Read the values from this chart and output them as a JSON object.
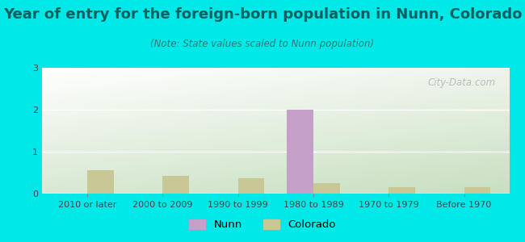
{
  "title": "Year of entry for the foreign-born population in Nunn, Colorado",
  "subtitle": "(Note: State values scaled to Nunn population)",
  "categories": [
    "2010 or later",
    "2000 to 2009",
    "1990 to 1999",
    "1980 to 1989",
    "1970 to 1979",
    "Before 1970"
  ],
  "nunn_values": [
    0,
    0,
    0,
    2.0,
    0,
    0
  ],
  "colorado_values": [
    0.55,
    0.42,
    0.37,
    0.25,
    0.15,
    0.15
  ],
  "nunn_color": "#c4a0c8",
  "colorado_color": "#c8c896",
  "background_color": "#00e8e8",
  "plot_bg_topleft": "#c8dfc0",
  "plot_bg_topright": "#e8f0e0",
  "plot_bg_bottom": "#daecd4",
  "ylim": [
    0,
    3
  ],
  "yticks": [
    0,
    1,
    2,
    3
  ],
  "bar_width": 0.35,
  "title_fontsize": 13,
  "subtitle_fontsize": 8.5,
  "tick_fontsize": 8,
  "legend_fontsize": 9.5,
  "title_color": "#006060",
  "subtitle_color": "#337777",
  "tick_color": "#444444",
  "watermark": "City-Data.com"
}
